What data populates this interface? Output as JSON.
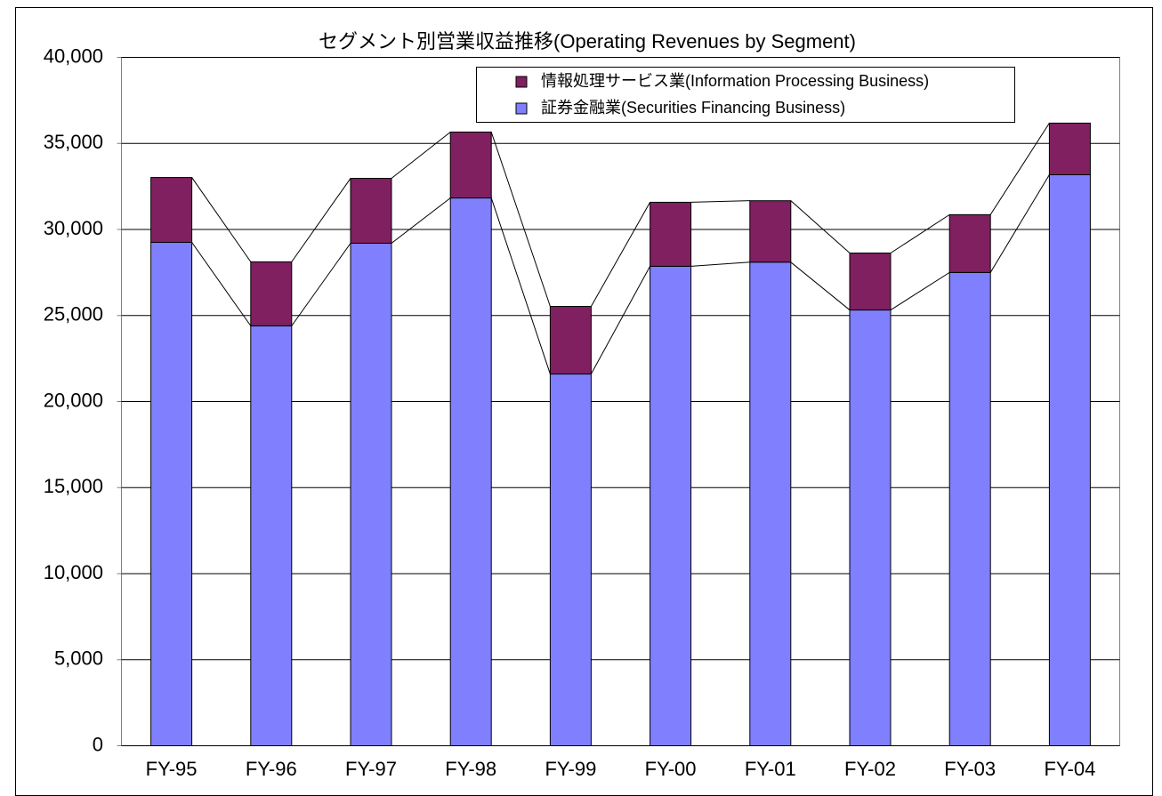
{
  "chart_data": {
    "type": "stacked_bar",
    "title": "セグメント別営業収益推移(Operating Revenues by Segment)",
    "categories": [
      "FY-95",
      "FY-96",
      "FY-97",
      "FY-98",
      "FY-99",
      "FY-00",
      "FY-01",
      "FY-02",
      "FY-03",
      "FY-04"
    ],
    "series": [
      {
        "name": "証券金融業(Securities Financing Business)",
        "color": "#8080ff",
        "values": [
          29250,
          24400,
          29200,
          31830,
          21600,
          27860,
          28100,
          25320,
          27500,
          33180
        ]
      },
      {
        "name": "情報処理サービス業(Information Processing Business)",
        "color": "#802060",
        "values": [
          3770,
          3720,
          3770,
          3830,
          3930,
          3720,
          3570,
          3310,
          3360,
          3000
        ]
      }
    ],
    "ylim": [
      0,
      40000
    ],
    "yticks": [
      0,
      {
        "value": 5000,
        "label": "5,000"
      },
      {
        "value": 10000,
        "label": "10,000"
      },
      {
        "value": 15000,
        "label": "15,000"
      },
      {
        "value": 20000,
        "label": "20,000"
      },
      {
        "value": 25000,
        "label": "25,000"
      },
      {
        "value": 30000,
        "label": "30,000"
      },
      {
        "value": 35000,
        "label": "35,000"
      },
      {
        "value": 40000,
        "label": "40,000"
      }
    ],
    "grid": true,
    "legend": "top-right"
  }
}
